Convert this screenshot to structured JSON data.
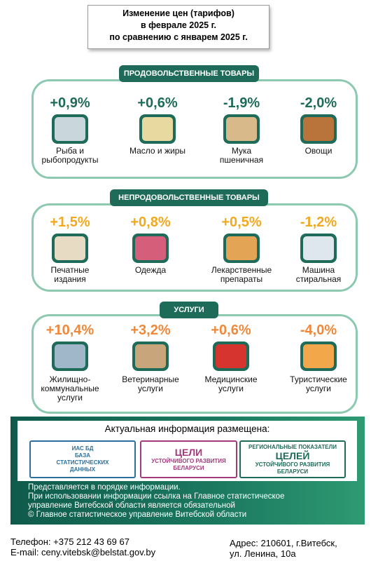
{
  "title": [
    "Изменение цен (тарифов)",
    "в феврале 2025 г.",
    "по сравнению с январем 2025 г."
  ],
  "sections": [
    {
      "heading": "ПРОДОВОЛЬСТВЕННЫЕ ТОВАРЫ",
      "items": [
        {
          "change": "+0,9%",
          "label": [
            "Рыба и",
            "рыбопродукты"
          ]
        },
        {
          "change": "+0,6%",
          "label": [
            "Масло и жиры"
          ]
        },
        {
          "change": "-1,9%",
          "label": [
            "Мука",
            "пшеничная"
          ]
        },
        {
          "change": "-2,0%",
          "label": [
            "Овощи"
          ]
        }
      ]
    },
    {
      "heading": "НЕПРОДОВОЛЬСТВЕННЫЕ ТОВАРЫ",
      "items": [
        {
          "change": "+1,5%",
          "label": [
            "Печатные",
            "издания"
          ]
        },
        {
          "change": "+0,8%",
          "label": [
            "Одежда"
          ]
        },
        {
          "change": "+0,5%",
          "label": [
            "Лекарственные",
            "препараты"
          ]
        },
        {
          "change": "-1,2%",
          "label": [
            "Машина",
            "стиральная"
          ]
        }
      ]
    },
    {
      "heading": "УСЛУГИ",
      "items": [
        {
          "change": "+10,4%",
          "label": [
            "Жилищно-",
            "коммунальные",
            "услуги"
          ]
        },
        {
          "change": "+3,2%",
          "label": [
            "Ветеринарные",
            "услуги"
          ]
        },
        {
          "change": "+0,6%",
          "label": [
            "Медицинские",
            "услуги"
          ]
        },
        {
          "change": "-4,0%",
          "label": [
            "Туристические",
            "услуги"
          ]
        }
      ]
    }
  ],
  "info": {
    "heading": "Актуальная информация размещена:",
    "logos": [
      [
        "ИАС БД",
        "БАЗА",
        "СТАТИСТИЧЕСКИХ",
        "ДАННЫХ"
      ],
      [
        "ЦЕЛИ",
        "УСТОЙЧИВОГО РАЗВИТИЯ",
        "БЕЛАРУСИ"
      ],
      [
        "РЕГИОНАЛЬНЫЕ ПОКАЗАТЕЛИ",
        "ЦЕЛЕЙ",
        "УСТОЙЧИВОГО РАЗВИТИЯ",
        "БЕЛАРУСИ"
      ]
    ],
    "notes": [
      "Представляется в порядке информации.",
      "При использовании информации ссылка на Главное статистическое",
      "управление Витебской области является обязательной",
      "© Главное статистическое управление Витебской области"
    ]
  },
  "contacts": {
    "left": [
      "Телефон: +375 212 43 69 67",
      "E-mail: ceny.vitebsk@belstat.gov.by"
    ],
    "right": [
      "Адрес: 210601, г.Витебск,",
      "ул. Ленина, 10а"
    ]
  }
}
